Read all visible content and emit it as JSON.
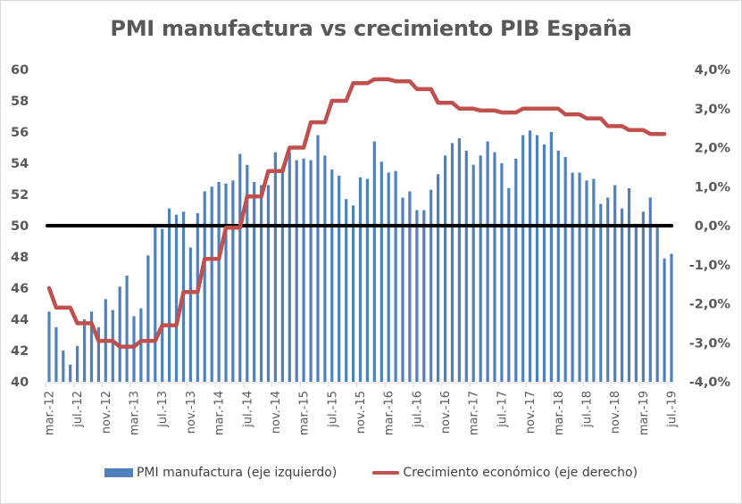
{
  "chart_data": {
    "type": "bar+line",
    "title": "PMI manufactura vs crecimiento PIB España",
    "xlabel": "",
    "ylabel_left": "",
    "ylabel_right": "",
    "y_left": {
      "range": [
        40,
        60
      ],
      "ticks": [
        "40",
        "42",
        "44",
        "46",
        "48",
        "50",
        "52",
        "54",
        "56",
        "58",
        "60"
      ]
    },
    "y_right": {
      "range": [
        -4.0,
        4.0
      ],
      "ticks": [
        "-4,0%",
        "-3,0%",
        "-2,0%",
        "-1,0%",
        "0,0%",
        "1,0%",
        "2,0%",
        "3,0%",
        "4,0%"
      ]
    },
    "reference_line": {
      "axis": "left",
      "value": 50,
      "color": "#000000"
    },
    "grid": false,
    "legend_position": "bottom",
    "x_tick_labels": [
      "mar.-12",
      "jul.-12",
      "nov.-12",
      "mar.-13",
      "jul.-13",
      "nov.-13",
      "mar.-14",
      "jul.-14",
      "nov.-14",
      "mar.-15",
      "jul.-15",
      "nov.-15",
      "mar.-16",
      "jul.-16",
      "nov.-16",
      "mar.-17",
      "jul.-17",
      "nov.-17",
      "mar.-18",
      "jul.-18",
      "nov.-18",
      "mar.-19",
      "jul.-19"
    ],
    "start_month": "mar.-12",
    "end_month": "jul.-19",
    "series": [
      {
        "name": "PMI manufactura (eje izquierdo)",
        "type": "bar",
        "axis": "left",
        "color": "#4f81bd",
        "values": [
          44.5,
          43.5,
          42.0,
          41.1,
          42.3,
          44.0,
          44.5,
          43.5,
          45.3,
          44.6,
          46.1,
          46.8,
          44.2,
          44.7,
          48.1,
          50.0,
          49.8,
          51.1,
          50.7,
          50.9,
          48.6,
          50.8,
          52.2,
          52.5,
          52.8,
          52.7,
          52.9,
          54.6,
          53.9,
          52.8,
          52.6,
          52.6,
          54.7,
          53.8,
          54.7,
          54.2,
          54.3,
          54.2,
          55.8,
          54.5,
          53.6,
          53.2,
          51.7,
          51.3,
          53.1,
          53.0,
          55.4,
          54.1,
          53.4,
          53.5,
          51.8,
          52.2,
          51.0,
          51.0,
          52.3,
          53.3,
          54.5,
          55.3,
          55.6,
          54.8,
          53.9,
          54.5,
          55.4,
          54.7,
          54.0,
          52.4,
          54.3,
          55.8,
          56.1,
          55.8,
          55.2,
          56.0,
          54.8,
          54.4,
          53.4,
          53.4,
          52.9,
          53.0,
          51.4,
          51.8,
          52.6,
          51.1,
          52.4,
          49.9,
          50.9,
          51.8,
          50.1,
          47.9,
          48.2
        ]
      },
      {
        "name": "Crecimiento económico (eje derecho)",
        "type": "line",
        "axis": "right",
        "color": "#c0504d",
        "unit": "%",
        "values": [
          -1.6,
          -2.1,
          -2.1,
          -2.1,
          -2.5,
          -2.5,
          -2.5,
          -2.95,
          -2.95,
          -2.95,
          -3.1,
          -3.1,
          -3.1,
          -2.95,
          -2.95,
          -2.95,
          -2.55,
          -2.55,
          -2.55,
          -1.7,
          -1.7,
          -1.7,
          -0.85,
          -0.85,
          -0.85,
          -0.05,
          -0.05,
          -0.05,
          0.75,
          0.75,
          0.75,
          1.4,
          1.4,
          1.4,
          2.0,
          2.0,
          2.0,
          2.65,
          2.65,
          2.65,
          3.2,
          3.2,
          3.2,
          3.65,
          3.65,
          3.65,
          3.75,
          3.75,
          3.75,
          3.7,
          3.7,
          3.7,
          3.5,
          3.5,
          3.5,
          3.15,
          3.15,
          3.15,
          3.0,
          3.0,
          3.0,
          2.95,
          2.95,
          2.95,
          2.9,
          2.9,
          2.9,
          3.0,
          3.0,
          3.0,
          3.0,
          3.0,
          3.0,
          2.85,
          2.85,
          2.85,
          2.75,
          2.75,
          2.75,
          2.55,
          2.55,
          2.55,
          2.45,
          2.45,
          2.45,
          2.35,
          2.35,
          2.35,
          null
        ]
      }
    ]
  }
}
